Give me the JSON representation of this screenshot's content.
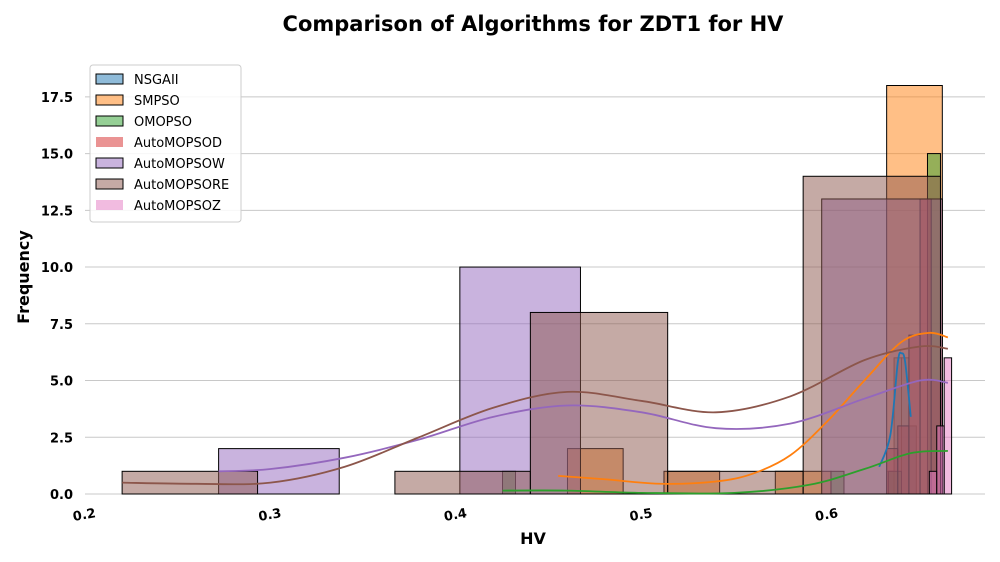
{
  "chart_data": {
    "type": "histogram",
    "title": "Comparison of Algorithms for ZDT1 for HV",
    "xlabel": "HV",
    "ylabel": "Frequency",
    "xlim": [
      0.2,
      0.685
    ],
    "ylim": [
      0,
      19.3
    ],
    "xticks": [
      "0.2",
      "0.3",
      "0.4",
      "0.5",
      "0.6"
    ],
    "yticks": [
      "0.0",
      "2.5",
      "5.0",
      "7.5",
      "10.0",
      "12.5",
      "15.0",
      "17.5"
    ],
    "grid": "horizontal",
    "legend": "top-left",
    "series": [
      {
        "name": "NSGAII",
        "color": "#1f77b4",
        "bins": [
          [
            0.632,
            0.636,
            1
          ],
          [
            0.636,
            0.64,
            6
          ],
          [
            0.64,
            0.644,
            6
          ],
          [
            0.644,
            0.648,
            3
          ]
        ],
        "kde": [
          [
            0.628,
            1.2
          ],
          [
            0.634,
            2.6
          ],
          [
            0.638,
            5.8
          ],
          [
            0.64,
            6.2
          ],
          [
            0.642,
            5.8
          ],
          [
            0.645,
            3.4
          ]
        ]
      },
      {
        "name": "SMPSO",
        "color": "#ff7f0e",
        "bins": [
          [
            0.46,
            0.49,
            2
          ],
          [
            0.512,
            0.542,
            1
          ],
          [
            0.572,
            0.602,
            1
          ],
          [
            0.632,
            0.662,
            18
          ]
        ],
        "kde": [
          [
            0.455,
            0.8
          ],
          [
            0.48,
            0.65
          ],
          [
            0.51,
            0.45
          ],
          [
            0.54,
            0.55
          ],
          [
            0.56,
            0.9
          ],
          [
            0.58,
            1.7
          ],
          [
            0.6,
            3.2
          ],
          [
            0.62,
            5.0
          ],
          [
            0.64,
            6.7
          ],
          [
            0.655,
            7.1
          ],
          [
            0.665,
            6.9
          ]
        ]
      },
      {
        "name": "OMOPSO",
        "color": "#2ca02c",
        "bins": [
          [
            0.425,
            0.432,
            1
          ],
          [
            0.602,
            0.609,
            1
          ],
          [
            0.633,
            0.64,
            1
          ],
          [
            0.654,
            0.661,
            15
          ]
        ],
        "kde": [
          [
            0.425,
            0.15
          ],
          [
            0.46,
            0.15
          ],
          [
            0.5,
            0.05
          ],
          [
            0.55,
            0.05
          ],
          [
            0.59,
            0.4
          ],
          [
            0.62,
            1.1
          ],
          [
            0.645,
            1.8
          ],
          [
            0.665,
            1.9
          ]
        ]
      },
      {
        "name": "AutoMOPSOD",
        "color": "#d62728",
        "bins": [
          [
            0.632,
            0.638,
            2
          ],
          [
            0.638,
            0.644,
            3
          ],
          [
            0.644,
            0.65,
            7
          ],
          [
            0.65,
            0.656,
            13
          ],
          [
            0.656,
            0.662,
            5
          ]
        ],
        "kde": []
      },
      {
        "name": "AutoMOPSOW",
        "color": "#9467bd",
        "bins": [
          [
            0.272,
            0.337,
            2
          ],
          [
            0.402,
            0.467,
            10
          ],
          [
            0.597,
            0.662,
            13
          ]
        ],
        "kde": [
          [
            0.272,
            1.0
          ],
          [
            0.3,
            1.1
          ],
          [
            0.34,
            1.6
          ],
          [
            0.38,
            2.4
          ],
          [
            0.42,
            3.4
          ],
          [
            0.46,
            3.9
          ],
          [
            0.5,
            3.6
          ],
          [
            0.54,
            2.9
          ],
          [
            0.58,
            3.1
          ],
          [
            0.62,
            4.2
          ],
          [
            0.65,
            5.0
          ],
          [
            0.665,
            4.9
          ]
        ]
      },
      {
        "name": "AutoMOPSORE",
        "color": "#8c564b",
        "bins": [
          [
            0.22,
            0.293,
            1
          ],
          [
            0.367,
            0.44,
            1
          ],
          [
            0.44,
            0.514,
            8
          ],
          [
            0.514,
            0.587,
            1
          ],
          [
            0.587,
            0.661,
            14
          ]
        ],
        "kde": [
          [
            0.22,
            0.5
          ],
          [
            0.26,
            0.45
          ],
          [
            0.3,
            0.5
          ],
          [
            0.34,
            1.2
          ],
          [
            0.38,
            2.5
          ],
          [
            0.42,
            3.8
          ],
          [
            0.46,
            4.5
          ],
          [
            0.5,
            4.1
          ],
          [
            0.54,
            3.6
          ],
          [
            0.58,
            4.3
          ],
          [
            0.62,
            5.9
          ],
          [
            0.65,
            6.5
          ],
          [
            0.665,
            6.4
          ]
        ]
      },
      {
        "name": "AutoMOPSOZ",
        "color": "#e377c2",
        "bins": [
          [
            0.655,
            0.659,
            1
          ],
          [
            0.659,
            0.663,
            3
          ],
          [
            0.663,
            0.667,
            6
          ]
        ],
        "kde": []
      }
    ]
  }
}
